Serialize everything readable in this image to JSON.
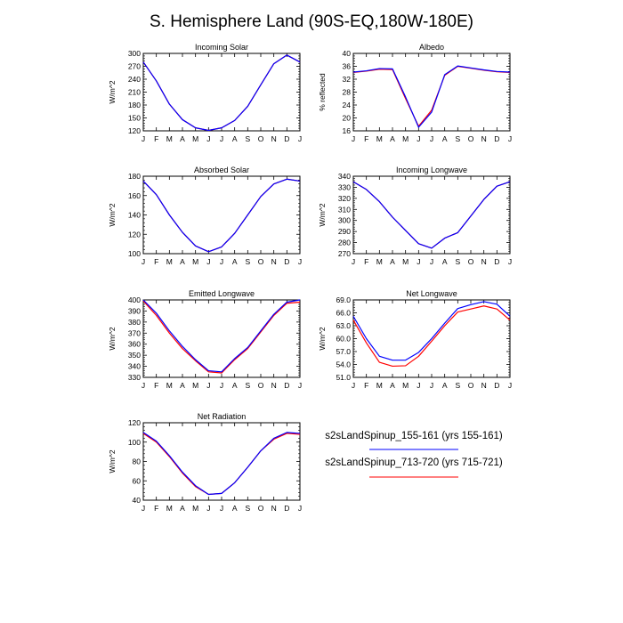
{
  "title": "S. Hemisphere Land (90S-EQ,180W-180E)",
  "months": [
    "J",
    "F",
    "M",
    "A",
    "M",
    "J",
    "J",
    "A",
    "S",
    "O",
    "N",
    "D",
    "J"
  ],
  "legend": {
    "entries": [
      {
        "label": "s2sLandSpinup_155-161 (yrs 155-161)",
        "color": "#0000ff"
      },
      {
        "label": "s2sLandSpinup_713-720 (yrs 715-721)",
        "color": "#ff0000"
      }
    ]
  },
  "chart_data": [
    {
      "type": "line",
      "title": "Incoming Solar",
      "ylabel": "W/m^2",
      "ylim": [
        120,
        300
      ],
      "yticks": [
        "120",
        "150",
        "180",
        "210",
        "240",
        "270",
        "300"
      ],
      "series": [
        {
          "name": "s2sLandSpinup_155-161 (yrs 155-161)",
          "color": "#0000ff",
          "values": [
            280,
            236,
            182,
            146,
            127,
            121,
            127,
            144,
            177,
            227,
            276,
            296,
            280
          ]
        },
        {
          "name": "s2sLandSpinup_713-720 (yrs 715-721)",
          "color": "#ff0000",
          "values": [
            280,
            236,
            182,
            146,
            127,
            121,
            127,
            144,
            177,
            227,
            276,
            296,
            280
          ]
        }
      ]
    },
    {
      "type": "line",
      "title": "Albedo",
      "ylabel": "% reflected",
      "ylim": [
        16,
        40
      ],
      "yticks": [
        "16",
        "20",
        "24",
        "28",
        "32",
        "36",
        "40"
      ],
      "series": [
        {
          "name": "s2sLandSpinup_155-161 (yrs 155-161)",
          "color": "#0000ff",
          "values": [
            34.2,
            34.6,
            35.3,
            35.2,
            26.5,
            17.1,
            21.8,
            33.4,
            36.1,
            35.5,
            34.9,
            34.4,
            34.2
          ]
        },
        {
          "name": "s2sLandSpinup_713-720 (yrs 715-721)",
          "color": "#ff0000",
          "values": [
            34.1,
            34.5,
            35.1,
            35.0,
            26.0,
            17.4,
            22.4,
            33.2,
            36.0,
            35.4,
            34.8,
            34.3,
            34.1
          ]
        }
      ]
    },
    {
      "type": "line",
      "title": "Absorbed Solar",
      "ylabel": "W/m^2",
      "ylim": [
        100,
        180
      ],
      "yticks": [
        "100",
        "120",
        "140",
        "160",
        "180"
      ],
      "series": [
        {
          "name": "s2sLandSpinup_155-161 (yrs 155-161)",
          "color": "#0000ff",
          "values": [
            175,
            161,
            140,
            122,
            108,
            102,
            107,
            121,
            140,
            159,
            172,
            177,
            175
          ]
        },
        {
          "name": "s2sLandSpinup_713-720 (yrs 715-721)",
          "color": "#ff0000",
          "values": [
            175,
            161,
            140,
            122,
            108,
            102,
            107,
            121,
            140,
            159,
            172,
            177,
            175
          ]
        }
      ]
    },
    {
      "type": "line",
      "title": "Incoming Longwave",
      "ylabel": "W/m^2",
      "ylim": [
        270,
        340
      ],
      "yticks": [
        "270",
        "280",
        "290",
        "300",
        "310",
        "320",
        "330",
        "340"
      ],
      "series": [
        {
          "name": "s2sLandSpinup_155-161 (yrs 155-161)",
          "color": "#0000ff",
          "values": [
            335,
            328,
            317,
            303,
            291,
            279,
            275,
            284,
            289,
            304,
            319,
            331,
            335
          ]
        },
        {
          "name": "s2sLandSpinup_713-720 (yrs 715-721)",
          "color": "#ff0000",
          "values": [
            335,
            328,
            317,
            303,
            291,
            279,
            275,
            284,
            289,
            304,
            319,
            331,
            335
          ]
        }
      ]
    },
    {
      "type": "line",
      "title": "Emitted Longwave",
      "ylabel": "W/m^2",
      "ylim": [
        330,
        400
      ],
      "yticks": [
        "330",
        "340",
        "350",
        "360",
        "370",
        "380",
        "390",
        "400"
      ],
      "series": [
        {
          "name": "s2sLandSpinup_155-161 (yrs 155-161)",
          "color": "#0000ff",
          "values": [
            400,
            388,
            372,
            358,
            346,
            336,
            335,
            347,
            357,
            372,
            387,
            398,
            400
          ]
        },
        {
          "name": "s2sLandSpinup_713-720 (yrs 715-721)",
          "color": "#ff0000",
          "values": [
            399,
            386,
            370,
            356,
            345,
            335,
            334,
            346,
            356,
            371,
            386,
            397,
            398
          ]
        }
      ]
    },
    {
      "type": "line",
      "title": "Net Longwave",
      "ylabel": "W/m^2",
      "ylim": [
        51,
        69
      ],
      "yticks": [
        "51.0",
        "54.0",
        "57.0",
        "60.0",
        "63.0",
        "66.0",
        "69.0"
      ],
      "series": [
        {
          "name": "s2sLandSpinup_155-161 (yrs 155-161)",
          "color": "#0000ff",
          "values": [
            65.2,
            60.0,
            55.9,
            55.0,
            55.0,
            56.8,
            60.0,
            63.6,
            67.0,
            67.9,
            68.6,
            68.0,
            65.2
          ]
        },
        {
          "name": "s2sLandSpinup_713-720 (yrs 715-721)",
          "color": "#ff0000",
          "values": [
            64.3,
            59.0,
            54.5,
            53.6,
            53.7,
            55.9,
            59.4,
            63.0,
            66.2,
            66.9,
            67.6,
            66.9,
            64.3
          ]
        }
      ]
    },
    {
      "type": "line",
      "title": "Net Radiation",
      "ylabel": "W/m^2",
      "ylim": [
        40,
        120
      ],
      "yticks": [
        "40",
        "60",
        "80",
        "100",
        "120"
      ],
      "series": [
        {
          "name": "s2sLandSpinup_155-161 (yrs 155-161)",
          "color": "#0000ff",
          "values": [
            110,
            101,
            86,
            69,
            55,
            46,
            47,
            58,
            74,
            91,
            104,
            110,
            109
          ]
        },
        {
          "name": "s2sLandSpinup_713-720 (yrs 715-721)",
          "color": "#ff0000",
          "values": [
            109,
            100,
            85,
            68,
            54,
            46,
            47,
            58,
            74,
            91,
            103,
            109,
            108
          ]
        }
      ]
    }
  ]
}
